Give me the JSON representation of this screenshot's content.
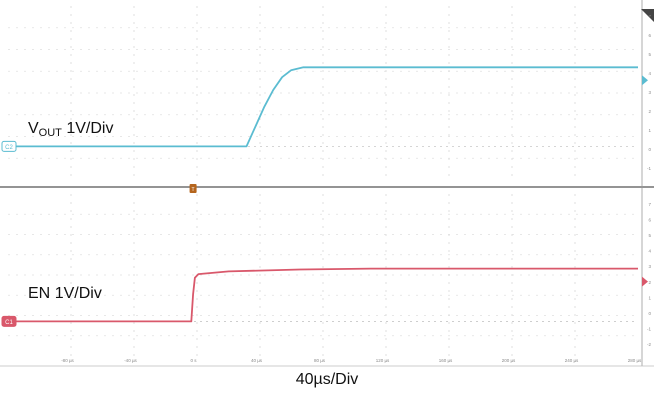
{
  "chart_data": [
    {
      "type": "line",
      "panel": "upper",
      "channel_tag": "C2",
      "label_main": "V",
      "label_sub": "OUT",
      "label_scale": "1V/Div",
      "series_color": "#5bbcd1",
      "x_unit": "µs",
      "xlim": [
        -104,
        250
      ],
      "y_unit": "V",
      "ylim": [
        -1.7,
        7.1
      ],
      "y_ticks": [
        "7",
        "6",
        "5",
        "4",
        "3",
        "2",
        "1",
        "0",
        "-1"
      ],
      "x": [
        -104,
        30,
        35,
        40,
        45,
        50,
        55,
        62,
        80,
        250
      ],
      "y": [
        0,
        0,
        1.0,
        2.0,
        2.85,
        3.5,
        3.85,
        4.0,
        4.0,
        4.0
      ]
    },
    {
      "type": "line",
      "panel": "lower",
      "channel_tag": "C1",
      "label_main": "EN",
      "label_scale": "1V/Div",
      "series_color": "#d9586b",
      "x_unit": "µs",
      "xlim": [
        -104,
        250
      ],
      "y_unit": "V",
      "ylim": [
        -1.9,
        7.0
      ],
      "y_ticks": [
        "7",
        "6",
        "5",
        "4",
        "3",
        "2",
        "1",
        "0",
        "-1",
        "-2"
      ],
      "x": [
        -104,
        -1,
        0,
        1,
        3,
        20,
        60,
        100,
        150,
        250
      ],
      "y": [
        0,
        0,
        1.5,
        2.4,
        2.6,
        2.75,
        2.85,
        2.9,
        2.9,
        2.9
      ]
    }
  ],
  "x_tick_labels": [
    "-80 µs",
    "-40 µs",
    "0 s",
    "40 µs",
    "80 µs",
    "120 µs",
    "160 µs",
    "200 µs",
    "240 µs",
    "280 µs"
  ],
  "trigger_marker": "T",
  "time_scale_label": "40µs/Div"
}
